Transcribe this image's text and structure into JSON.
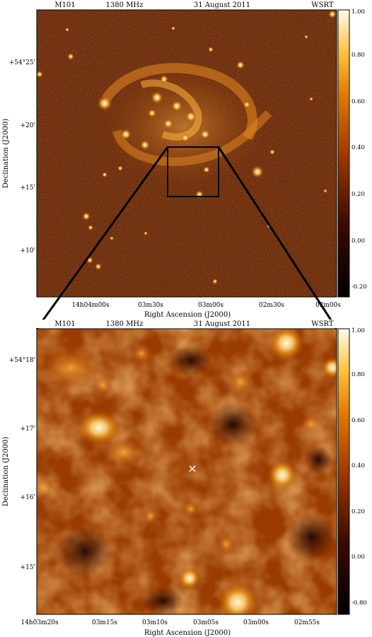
{
  "panels": [
    {
      "id": "top",
      "header": {
        "object": "M101",
        "frequency": "1380 MHz",
        "date": "31 August 2011",
        "telescope": "WSRT"
      },
      "x_ticks": [
        "14h04m00s",
        "03m30s",
        "03m00s",
        "02m30s",
        "02m00s"
      ],
      "y_ticks": [
        "+54°25'",
        "+20'",
        "+15'",
        "+10'"
      ],
      "xlabel": "Right Ascension (J2000)",
      "ylabel": "Declination (J2000)",
      "colorbar_ticks": [
        "1.00",
        "0.80",
        "0.60",
        "0.40",
        "0.20",
        "0.00",
        "-0.20"
      ]
    },
    {
      "id": "bottom",
      "header": {
        "object": "M101",
        "frequency": "1380 MHz",
        "date": "31 August 2011",
        "telescope": "WSRT"
      },
      "x_ticks": [
        "14h03m20s",
        "03m15s",
        "03m10s",
        "03m05s",
        "03m00s",
        "02m55s"
      ],
      "y_ticks": [
        "+54°18'",
        "+17'",
        "+16'",
        "+15'"
      ],
      "xlabel": "Right Ascension (J2000)",
      "ylabel": "Declination (J2000)",
      "colorbar_ticks": [
        "1.00",
        "0.80",
        "0.60",
        "0.40",
        "0.20",
        "0.00",
        "-0.80"
      ]
    }
  ],
  "colormap": {
    "name": "heat",
    "low": "#000000",
    "mid": "#b84a00",
    "high": "#fffde0"
  },
  "marker": "×"
}
